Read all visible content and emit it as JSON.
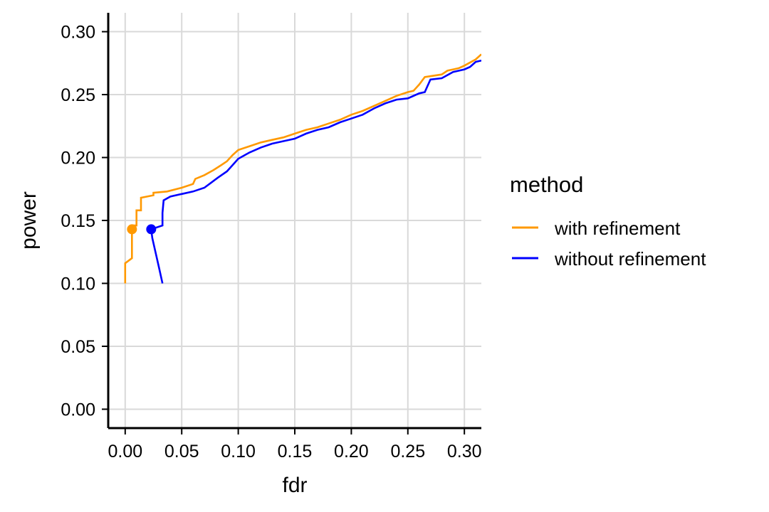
{
  "chart_data": {
    "type": "line",
    "title": "",
    "xlabel": "fdr",
    "ylabel": "power",
    "xlim": [
      -0.015,
      0.315
    ],
    "ylim": [
      -0.015,
      0.315
    ],
    "x_ticks": [
      "0.00",
      "0.05",
      "0.10",
      "0.15",
      "0.20",
      "0.25",
      "0.30"
    ],
    "y_ticks": [
      "0.00",
      "0.05",
      "0.10",
      "0.15",
      "0.20",
      "0.25",
      "0.30"
    ],
    "grid": true,
    "legend": {
      "title": "method",
      "position": "right"
    },
    "series": [
      {
        "name": "with refinement",
        "color": "#FF9900",
        "marker": {
          "x": 0.006,
          "y": 0.143
        },
        "points": [
          [
            0.0,
            0.1
          ],
          [
            0.0,
            0.116
          ],
          [
            0.006,
            0.12
          ],
          [
            0.006,
            0.146
          ],
          [
            0.01,
            0.146
          ],
          [
            0.01,
            0.158
          ],
          [
            0.014,
            0.158
          ],
          [
            0.014,
            0.168
          ],
          [
            0.025,
            0.17
          ],
          [
            0.025,
            0.172
          ],
          [
            0.037,
            0.173
          ],
          [
            0.05,
            0.176
          ],
          [
            0.06,
            0.179
          ],
          [
            0.062,
            0.183
          ],
          [
            0.07,
            0.186
          ],
          [
            0.078,
            0.19
          ],
          [
            0.085,
            0.194
          ],
          [
            0.09,
            0.197
          ],
          [
            0.095,
            0.202
          ],
          [
            0.1,
            0.206
          ],
          [
            0.11,
            0.209
          ],
          [
            0.12,
            0.212
          ],
          [
            0.13,
            0.214
          ],
          [
            0.14,
            0.216
          ],
          [
            0.15,
            0.219
          ],
          [
            0.16,
            0.222
          ],
          [
            0.17,
            0.224
          ],
          [
            0.18,
            0.227
          ],
          [
            0.19,
            0.23
          ],
          [
            0.2,
            0.234
          ],
          [
            0.21,
            0.237
          ],
          [
            0.22,
            0.241
          ],
          [
            0.23,
            0.245
          ],
          [
            0.24,
            0.249
          ],
          [
            0.25,
            0.252
          ],
          [
            0.255,
            0.253
          ],
          [
            0.26,
            0.258
          ],
          [
            0.265,
            0.264
          ],
          [
            0.28,
            0.266
          ],
          [
            0.285,
            0.269
          ],
          [
            0.295,
            0.271
          ],
          [
            0.3,
            0.273
          ],
          [
            0.31,
            0.278
          ],
          [
            0.315,
            0.282
          ]
        ]
      },
      {
        "name": "without refinement",
        "color": "#0000FF",
        "marker": {
          "x": 0.023,
          "y": 0.143
        },
        "points": [
          [
            0.033,
            0.1
          ],
          [
            0.03,
            0.112
          ],
          [
            0.027,
            0.124
          ],
          [
            0.024,
            0.136
          ],
          [
            0.023,
            0.143
          ],
          [
            0.033,
            0.146
          ],
          [
            0.033,
            0.156
          ],
          [
            0.034,
            0.166
          ],
          [
            0.04,
            0.169
          ],
          [
            0.05,
            0.171
          ],
          [
            0.06,
            0.173
          ],
          [
            0.07,
            0.176
          ],
          [
            0.076,
            0.18
          ],
          [
            0.082,
            0.184
          ],
          [
            0.09,
            0.189
          ],
          [
            0.095,
            0.194
          ],
          [
            0.1,
            0.199
          ],
          [
            0.11,
            0.204
          ],
          [
            0.12,
            0.208
          ],
          [
            0.13,
            0.211
          ],
          [
            0.14,
            0.213
          ],
          [
            0.15,
            0.215
          ],
          [
            0.16,
            0.219
          ],
          [
            0.17,
            0.222
          ],
          [
            0.18,
            0.224
          ],
          [
            0.19,
            0.228
          ],
          [
            0.2,
            0.231
          ],
          [
            0.21,
            0.234
          ],
          [
            0.22,
            0.239
          ],
          [
            0.23,
            0.243
          ],
          [
            0.24,
            0.246
          ],
          [
            0.25,
            0.247
          ],
          [
            0.26,
            0.251
          ],
          [
            0.265,
            0.252
          ],
          [
            0.27,
            0.262
          ],
          [
            0.28,
            0.263
          ],
          [
            0.29,
            0.268
          ],
          [
            0.3,
            0.27
          ],
          [
            0.305,
            0.272
          ],
          [
            0.31,
            0.276
          ],
          [
            0.315,
            0.277
          ]
        ]
      }
    ]
  }
}
